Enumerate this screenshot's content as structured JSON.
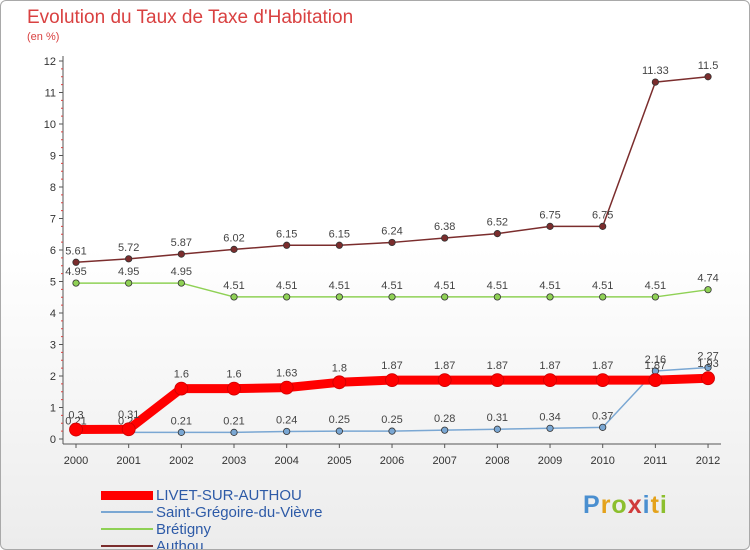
{
  "title": "Evolution du Taux de Taxe d'Habitation",
  "subtitle": "(en %)",
  "logo_text": "Proxiti",
  "chart_data": {
    "type": "line",
    "x": [
      "2000",
      "2001",
      "2002",
      "2003",
      "2004",
      "2005",
      "2006",
      "2007",
      "2008",
      "2009",
      "2010",
      "2011",
      "2012"
    ],
    "ylim": [
      0,
      12
    ],
    "yticks": [
      "0",
      "1",
      "2",
      "3",
      "4",
      "5",
      "6",
      "7",
      "8",
      "9",
      "10",
      "11",
      "12"
    ],
    "grid": false,
    "legend_position": "bottom-left",
    "series": [
      {
        "name": "LIVET-SUR-AUTHOU",
        "color": "#ff0000",
        "values": [
          0.3,
          0.31,
          1.6,
          1.6,
          1.63,
          1.8,
          1.87,
          1.87,
          1.87,
          1.87,
          1.87,
          1.87,
          1.93
        ],
        "labels": [
          "0.3",
          "0.31",
          "1.6",
          "1.6",
          "1.63",
          "1.8",
          "1.87",
          "1.87",
          "1.87",
          "1.87",
          "1.87",
          "1.87",
          "1.93"
        ]
      },
      {
        "name": "Saint-Grégoire-du-Vièvre",
        "color": "#7aa7d3",
        "values": [
          0.21,
          0.21,
          0.21,
          0.21,
          0.24,
          0.25,
          0.25,
          0.28,
          0.31,
          0.34,
          0.37,
          2.16,
          2.27
        ],
        "labels": [
          "0.21",
          "0.21",
          "0.21",
          "0.21",
          "0.24",
          "0.25",
          "0.25",
          "0.28",
          "0.31",
          "0.34",
          "0.37",
          "2.16",
          "2.27"
        ]
      },
      {
        "name": "Brétigny",
        "color": "#8fd155",
        "values": [
          4.95,
          4.95,
          4.95,
          4.51,
          4.51,
          4.51,
          4.51,
          4.51,
          4.51,
          4.51,
          4.51,
          4.51,
          4.74
        ],
        "labels": [
          "4.95",
          "4.95",
          "4.95",
          "4.51",
          "4.51",
          "4.51",
          "4.51",
          "4.51",
          "4.51",
          "4.51",
          "4.51",
          "4.51",
          "4.74"
        ]
      },
      {
        "name": "Authou",
        "color": "#7b2d2d",
        "values": [
          5.61,
          5.72,
          5.87,
          6.02,
          6.15,
          6.15,
          6.24,
          6.38,
          6.52,
          6.75,
          6.75,
          11.33,
          11.5
        ],
        "labels": [
          "5.61",
          "5.72",
          "5.87",
          "6.02",
          "6.15",
          "6.15",
          "6.24",
          "6.38",
          "6.52",
          "6.75",
          "6.75",
          "11.33",
          "11.5"
        ]
      }
    ]
  }
}
